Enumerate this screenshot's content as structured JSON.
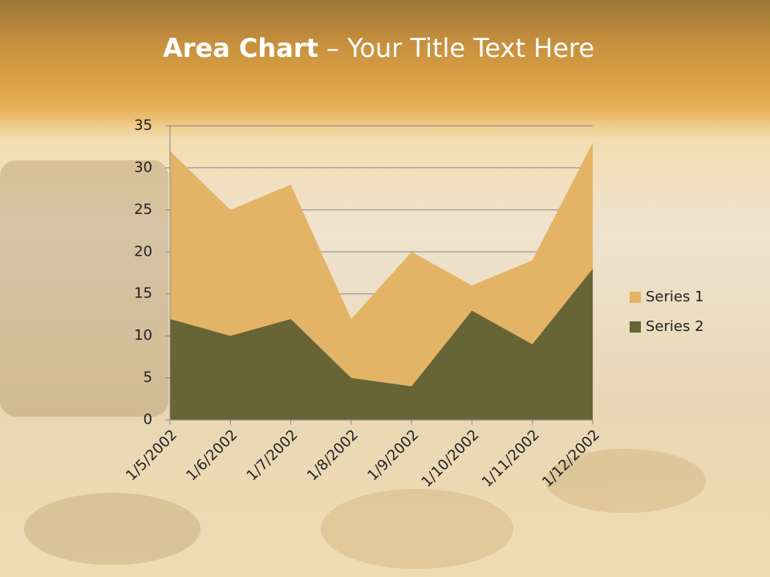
{
  "chart_data": {
    "type": "area",
    "title": {
      "bold": "Area Chart",
      "rest": "– Your Title Text Here"
    },
    "categories": [
      "1/5/2002",
      "1/6/2002",
      "1/7/2002",
      "1/8/2002",
      "1/9/2002",
      "1/10/2002",
      "1/11/2002",
      "1/12/2002"
    ],
    "series": [
      {
        "name": "Series 1",
        "color": "#e3b466",
        "values": [
          32,
          25,
          28,
          12,
          20,
          16,
          19,
          33
        ]
      },
      {
        "name": "Series 2",
        "color": "#676536",
        "values": [
          12,
          10,
          12,
          5,
          4,
          13,
          9,
          18
        ]
      }
    ],
    "ylim": [
      0,
      35
    ],
    "yticks": [
      0,
      5,
      10,
      15,
      20,
      25,
      30,
      35
    ],
    "grid": true,
    "legend": "right"
  }
}
